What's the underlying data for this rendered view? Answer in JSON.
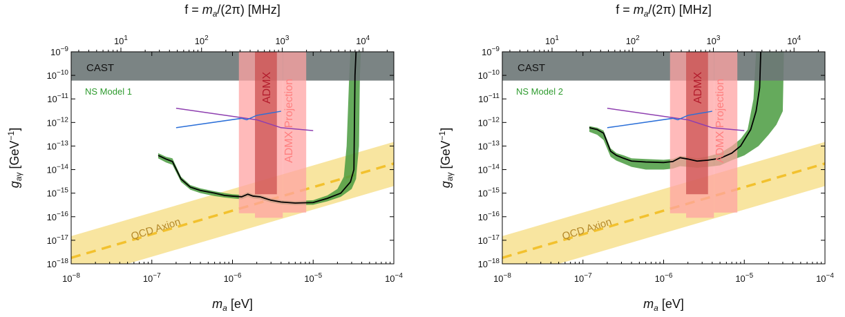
{
  "chart_data": [
    {
      "type": "line",
      "top_axis_title": "f = m_a/(2π) [MHz]",
      "xlabel": "m_a [eV]",
      "ylabel": "g_aγ [GeV^-1]",
      "x_scale": "log",
      "y_scale": "log",
      "xlim": [
        1e-08,
        0.0001
      ],
      "ylim": [
        1e-18,
        1e-09
      ],
      "x_tick_labels": [
        "10^-8",
        "10^-7",
        "10^-6",
        "10^-5",
        "10^-4"
      ],
      "y_tick_labels": [
        "10^-18",
        "10^-17",
        "10^-16",
        "10^-15",
        "10^-14",
        "10^-13",
        "10^-12",
        "10^-11",
        "10^-10",
        "10^-9"
      ],
      "top_tick_labels": [
        "10^1",
        "10^2",
        "10^3",
        "10^4"
      ],
      "top_ticks_mhz": [
        10,
        100,
        1000,
        10000
      ],
      "annotations": {
        "cast": "CAST",
        "ns_model": "NS Model 1",
        "admx": "ADMX",
        "admx_projection": "ADMX Projection",
        "qcd_axion": "QCD Axion"
      },
      "colors": {
        "cast": "#6d7777",
        "ns_band": "#4a9b40",
        "ns_label": "#2e9b2e",
        "admx": "#c94a4a",
        "admx_projection": "#ffa3a3",
        "qcd_band": "#f7e08f",
        "qcd_line": "#f2c12e",
        "qcd_label": "#b5892a",
        "purple": "#8e3fb0",
        "blue": "#2b6fd8",
        "limit": "#000000"
      },
      "cast": {
        "g_min": 6e-11
      },
      "admx": {
        "m_range": [
          1.9e-06,
          3.55e-06
        ],
        "g_min": 9e-16
      },
      "admx_projection": {
        "segments": [
          {
            "m_range": [
              1.2e-06,
              1.9e-06
            ],
            "g_min": 1.4e-16
          },
          {
            "m_range": [
              1.9e-06,
              4.2e-06
            ],
            "g_min": 9e-17
          },
          {
            "m_range": [
              4.2e-06,
              8.2e-06
            ],
            "g_min": 1.5e-16
          }
        ]
      },
      "qcd": {
        "line": [
          [
            1e-08,
            1.8e-18
          ],
          [
            0.0001,
            1.8e-14
          ]
        ],
        "band_upper": [
          [
            1e-08,
            1.5e-17
          ],
          [
            0.0001,
            1.5e-13
          ]
        ],
        "band_lower": [
          [
            1e-08,
            2e-19
          ],
          [
            0.0001,
            2e-15
          ]
        ]
      },
      "purple_line": [
        [
          2e-07,
          4e-12
        ],
        [
          2e-06,
          1.3e-12
        ],
        [
          4e-06,
          6e-13
        ],
        [
          1e-05,
          4.5e-13
        ]
      ],
      "blue_line": [
        [
          2e-07,
          6e-13
        ],
        [
          1.3e-06,
          1.5e-12
        ],
        [
          1.5e-06,
          1.3e-12
        ],
        [
          2e-06,
          2e-12
        ],
        [
          4e-06,
          3e-12
        ]
      ],
      "limit_curve": [
        [
          1.2e-07,
          4e-14
        ],
        [
          1.5e-07,
          2.8e-14
        ],
        [
          1.8e-07,
          2.2e-14
        ],
        [
          2.3e-07,
          4e-15
        ],
        [
          3e-07,
          1.8e-15
        ],
        [
          4e-07,
          1.3e-15
        ],
        [
          6e-07,
          1e-15
        ],
        [
          8e-07,
          8e-16
        ],
        [
          1e-06,
          7.5e-16
        ],
        [
          1.3e-06,
          7e-16
        ],
        [
          1.55e-06,
          9e-16
        ],
        [
          1.8e-06,
          7.5e-16
        ],
        [
          2.2e-06,
          7e-16
        ],
        [
          3e-06,
          5e-16
        ],
        [
          4e-06,
          4.2e-16
        ],
        [
          6e-06,
          3.8e-16
        ],
        [
          1e-05,
          4e-16
        ],
        [
          1.5e-05,
          6e-16
        ],
        [
          2.2e-05,
          1e-15
        ],
        [
          2.9e-05,
          3e-15
        ],
        [
          3.2e-05,
          1e-14
        ],
        [
          3.3e-05,
          1e-10
        ],
        [
          3.4e-05,
          1e-09
        ]
      ],
      "ns_band_upper": [
        [
          1.2e-07,
          5e-14
        ],
        [
          1.5e-07,
          3.5e-14
        ],
        [
          1.8e-07,
          3e-14
        ],
        [
          2.3e-07,
          5e-15
        ],
        [
          3e-07,
          2.2e-15
        ],
        [
          4e-07,
          1.6e-15
        ],
        [
          6e-07,
          1.2e-15
        ],
        [
          8e-07,
          1e-15
        ],
        [
          1e-06,
          9e-16
        ],
        [
          1.3e-06,
          8.5e-16
        ],
        [
          1.55e-06,
          1.1e-15
        ],
        [
          1.8e-06,
          9e-16
        ],
        [
          2.2e-06,
          8.5e-16
        ],
        [
          3e-06,
          6e-16
        ],
        [
          4e-06,
          5e-16
        ],
        [
          6e-06,
          4.6e-16
        ],
        [
          1e-05,
          5e-16
        ],
        [
          1.5e-05,
          8e-16
        ],
        [
          2e-05,
          1.5e-15
        ],
        [
          2.4e-05,
          5e-15
        ],
        [
          2.6e-05,
          1e-13
        ],
        [
          2.8e-05,
          1e-10
        ],
        [
          2.9e-05,
          1e-09
        ]
      ],
      "ns_band_lower": [
        [
          1.2e-07,
          3e-14
        ],
        [
          1.5e-07,
          2e-14
        ],
        [
          1.8e-07,
          1.6e-14
        ],
        [
          2.3e-07,
          3e-15
        ],
        [
          3e-07,
          1.4e-15
        ],
        [
          4e-07,
          1e-15
        ],
        [
          6e-07,
          7.5e-16
        ],
        [
          8e-07,
          6.5e-16
        ],
        [
          1e-06,
          6e-16
        ],
        [
          1.3e-06,
          5.5e-16
        ],
        [
          1.55e-06,
          7e-16
        ],
        [
          1.8e-06,
          6e-16
        ],
        [
          2.2e-06,
          5.5e-16
        ],
        [
          3e-06,
          4e-16
        ],
        [
          4e-06,
          3.4e-16
        ],
        [
          6e-06,
          3.1e-16
        ],
        [
          1e-05,
          3.2e-16
        ],
        [
          1.5e-05,
          4.5e-16
        ],
        [
          2.2e-05,
          7e-16
        ],
        [
          3e-05,
          1.5e-15
        ],
        [
          3.4e-05,
          4e-15
        ],
        [
          3.7e-05,
          1e-13
        ],
        [
          3.8e-05,
          1e-10
        ],
        [
          3.9e-05,
          1e-09
        ]
      ]
    },
    {
      "type": "line",
      "top_axis_title": "f = m_a/(2π) [MHz]",
      "xlabel": "m_a [eV]",
      "ylabel": "g_aγ [GeV^-1]",
      "x_scale": "log",
      "y_scale": "log",
      "xlim": [
        1e-08,
        0.0001
      ],
      "ylim": [
        1e-18,
        1e-09
      ],
      "x_tick_labels": [
        "10^-8",
        "10^-7",
        "10^-6",
        "10^-5",
        "10^-4"
      ],
      "y_tick_labels": [
        "10^-18",
        "10^-17",
        "10^-16",
        "10^-15",
        "10^-14",
        "10^-13",
        "10^-12",
        "10^-11",
        "10^-10",
        "10^-9"
      ],
      "top_tick_labels": [
        "10^1",
        "10^2",
        "10^3",
        "10^4"
      ],
      "top_ticks_mhz": [
        10,
        100,
        1000,
        10000
      ],
      "annotations": {
        "cast": "CAST",
        "ns_model": "NS Model 2",
        "admx": "ADMX",
        "admx_projection": "ADMX Projection",
        "qcd_axion": "QCD Axion"
      },
      "colors": {
        "cast": "#6d7777",
        "ns_band": "#4a9b40",
        "ns_label": "#2e9b2e",
        "admx": "#c94a4a",
        "admx_projection": "#ffa3a3",
        "qcd_band": "#f7e08f",
        "qcd_line": "#f2c12e",
        "qcd_label": "#b5892a",
        "purple": "#8e3fb0",
        "blue": "#2b6fd8",
        "limit": "#000000"
      },
      "cast": {
        "g_min": 6e-11
      },
      "admx": {
        "m_range": [
          1.9e-06,
          3.55e-06
        ],
        "g_min": 9e-16
      },
      "admx_projection": {
        "segments": [
          {
            "m_range": [
              1.2e-06,
              1.9e-06
            ],
            "g_min": 1.4e-16
          },
          {
            "m_range": [
              1.9e-06,
              4.2e-06
            ],
            "g_min": 9e-17
          },
          {
            "m_range": [
              4.2e-06,
              8.2e-06
            ],
            "g_min": 1.5e-16
          }
        ]
      },
      "qcd": {
        "line": [
          [
            1e-08,
            1.8e-18
          ],
          [
            0.0001,
            1.8e-14
          ]
        ],
        "band_upper": [
          [
            1e-08,
            1.5e-17
          ],
          [
            0.0001,
            1.5e-13
          ]
        ],
        "band_lower": [
          [
            1e-08,
            2e-19
          ],
          [
            0.0001,
            2e-15
          ]
        ]
      },
      "purple_line": [
        [
          2e-07,
          4e-12
        ],
        [
          2e-06,
          1.3e-12
        ],
        [
          4e-06,
          6e-13
        ],
        [
          1e-05,
          4.5e-13
        ]
      ],
      "blue_line": [
        [
          2e-07,
          6e-13
        ],
        [
          1.3e-06,
          1.5e-12
        ],
        [
          1.5e-06,
          1.3e-12
        ],
        [
          2e-06,
          2e-12
        ],
        [
          4e-06,
          3e-12
        ]
      ],
      "limit_curve": [
        [
          1.2e-07,
          6e-13
        ],
        [
          1.5e-07,
          5e-13
        ],
        [
          1.8e-07,
          3.5e-13
        ],
        [
          2.2e-07,
          6e-14
        ],
        [
          2.6e-07,
          4e-14
        ],
        [
          3.2e-07,
          3e-14
        ],
        [
          4e-07,
          2.3e-14
        ],
        [
          6e-07,
          2.1e-14
        ],
        [
          1e-06,
          2e-14
        ],
        [
          1.3e-06,
          2.2e-14
        ],
        [
          1.6e-06,
          3.2e-14
        ],
        [
          2e-06,
          2.8e-14
        ],
        [
          2.6e-06,
          2.3e-14
        ],
        [
          3.5e-06,
          2.5e-14
        ],
        [
          5e-06,
          3e-14
        ],
        [
          7e-06,
          5e-14
        ],
        [
          9e-06,
          1e-13
        ],
        [
          1.2e-05,
          5e-13
        ],
        [
          1.4e-05,
          3e-12
        ],
        [
          1.55e-05,
          3e-11
        ],
        [
          1.6e-05,
          1e-09
        ]
      ],
      "ns_band_upper": [
        [
          1.2e-07,
          7e-13
        ],
        [
          1.5e-07,
          6e-13
        ],
        [
          1.8e-07,
          4.5e-13
        ],
        [
          2.2e-07,
          8e-14
        ],
        [
          2.6e-07,
          5e-14
        ],
        [
          3.2e-07,
          4e-14
        ],
        [
          4e-07,
          3e-14
        ],
        [
          6e-07,
          2.8e-14
        ],
        [
          1e-06,
          2.6e-14
        ],
        [
          1.3e-06,
          2.8e-14
        ],
        [
          1.6e-06,
          3.8e-14
        ],
        [
          2e-06,
          3.5e-14
        ],
        [
          2.6e-06,
          3e-14
        ],
        [
          3.5e-06,
          3.6e-14
        ],
        [
          5e-06,
          5e-14
        ],
        [
          7e-06,
          1e-13
        ],
        [
          9e-06,
          2e-13
        ],
        [
          1.1e-05,
          5e-13
        ],
        [
          1.3e-05,
          1e-11
        ],
        [
          1.4e-05,
          1e-09
        ]
      ],
      "ns_band_lower": [
        [
          1.2e-07,
          4e-13
        ],
        [
          1.5e-07,
          3e-13
        ],
        [
          1.8e-07,
          1.8e-13
        ],
        [
          2.2e-07,
          3.5e-14
        ],
        [
          2.6e-07,
          2.4e-14
        ],
        [
          3.2e-07,
          1.8e-14
        ],
        [
          4e-07,
          1.3e-14
        ],
        [
          6e-07,
          1e-14
        ],
        [
          1e-06,
          1e-14
        ],
        [
          1.3e-06,
          1.1e-14
        ],
        [
          1.6e-06,
          1.4e-14
        ],
        [
          2e-06,
          1.3e-14
        ],
        [
          2.6e-06,
          1.2e-14
        ],
        [
          3.5e-06,
          1.3e-14
        ],
        [
          5e-06,
          1.5e-14
        ],
        [
          7e-06,
          2.5e-14
        ],
        [
          1e-05,
          4e-14
        ],
        [
          1.5e-05,
          1e-13
        ],
        [
          2e-05,
          3e-13
        ],
        [
          2.5e-05,
          8e-13
        ],
        [
          3e-05,
          3e-12
        ],
        [
          3.1e-05,
          1e-09
        ]
      ]
    }
  ]
}
